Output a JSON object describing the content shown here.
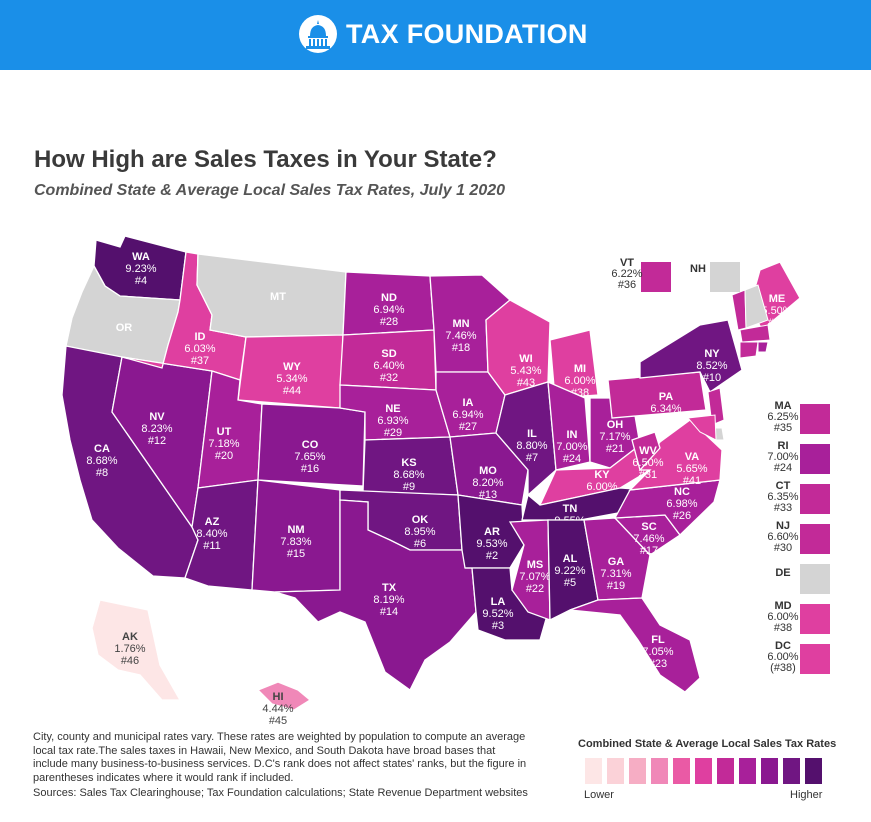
{
  "header": {
    "brand": "TAX FOUNDATION",
    "logo_icon": "capitol-dome-icon",
    "color": "#1a8fe8"
  },
  "title": "How High are Sales Taxes in Your State?",
  "subtitle": "Combined State & Average Local Sales Tax Rates, July 1 2020",
  "colors": {
    "no_tax": "#d4d4d4",
    "scale": [
      "#fde6e6",
      "#fbd2d8",
      "#f6adc4",
      "#f088b8",
      "#ea5aa5",
      "#df3fa0",
      "#c22a98",
      "#a8209a",
      "#8a1890",
      "#701682",
      "#54106d"
    ]
  },
  "states": [
    {
      "abbr": "WA",
      "rate": "9.23%",
      "rank": "#4"
    },
    {
      "abbr": "OR",
      "rate": "",
      "rank": ""
    },
    {
      "abbr": "CA",
      "rate": "8.68%",
      "rank": "#8"
    },
    {
      "abbr": "NV",
      "rate": "8.23%",
      "rank": "#12"
    },
    {
      "abbr": "ID",
      "rate": "6.03%",
      "rank": "#37"
    },
    {
      "abbr": "MT",
      "rate": "",
      "rank": ""
    },
    {
      "abbr": "WY",
      "rate": "5.34%",
      "rank": "#44"
    },
    {
      "abbr": "UT",
      "rate": "7.18%",
      "rank": "#20"
    },
    {
      "abbr": "AZ",
      "rate": "8.40%",
      "rank": "#11"
    },
    {
      "abbr": "CO",
      "rate": "7.65%",
      "rank": "#16"
    },
    {
      "abbr": "NM",
      "rate": "7.83%",
      "rank": "#15"
    },
    {
      "abbr": "ND",
      "rate": "6.94%",
      "rank": "#28"
    },
    {
      "abbr": "SD",
      "rate": "6.40%",
      "rank": "#32"
    },
    {
      "abbr": "NE",
      "rate": "6.93%",
      "rank": "#29"
    },
    {
      "abbr": "KS",
      "rate": "8.68%",
      "rank": "#9"
    },
    {
      "abbr": "OK",
      "rate": "8.95%",
      "rank": "#6"
    },
    {
      "abbr": "TX",
      "rate": "8.19%",
      "rank": "#14"
    },
    {
      "abbr": "MN",
      "rate": "7.46%",
      "rank": "#18"
    },
    {
      "abbr": "IA",
      "rate": "6.94%",
      "rank": "#27"
    },
    {
      "abbr": "MO",
      "rate": "8.20%",
      "rank": "#13"
    },
    {
      "abbr": "AR",
      "rate": "9.53%",
      "rank": "#2"
    },
    {
      "abbr": "LA",
      "rate": "9.52%",
      "rank": "#3"
    },
    {
      "abbr": "WI",
      "rate": "5.43%",
      "rank": "#43"
    },
    {
      "abbr": "IL",
      "rate": "8.80%",
      "rank": "#7"
    },
    {
      "abbr": "MI",
      "rate": "6.00%",
      "rank": "#38"
    },
    {
      "abbr": "IN",
      "rate": "7.00%",
      "rank": "#24"
    },
    {
      "abbr": "OH",
      "rate": "7.17%",
      "rank": "#21"
    },
    {
      "abbr": "KY",
      "rate": "6.00%",
      "rank": "#38"
    },
    {
      "abbr": "TN",
      "rate": "9.55%",
      "rank": "#1"
    },
    {
      "abbr": "MS",
      "rate": "7.07%",
      "rank": "#22"
    },
    {
      "abbr": "AL",
      "rate": "9.22%",
      "rank": "#5"
    },
    {
      "abbr": "GA",
      "rate": "7.31%",
      "rank": "#19"
    },
    {
      "abbr": "FL",
      "rate": "7.05%",
      "rank": "#23"
    },
    {
      "abbr": "SC",
      "rate": "7.46%",
      "rank": "#17"
    },
    {
      "abbr": "NC",
      "rate": "6.98%",
      "rank": "#26"
    },
    {
      "abbr": "VA",
      "rate": "5.65%",
      "rank": "#41"
    },
    {
      "abbr": "WV",
      "rate": "6.50%",
      "rank": "#31"
    },
    {
      "abbr": "PA",
      "rate": "6.34%",
      "rank": "#34"
    },
    {
      "abbr": "NY",
      "rate": "8.52%",
      "rank": "#10"
    },
    {
      "abbr": "ME",
      "rate": "5.50%",
      "rank": "#42"
    },
    {
      "abbr": "AK",
      "rate": "1.76%",
      "rank": "#46"
    },
    {
      "abbr": "HI",
      "rate": "4.44%",
      "rank": "#45"
    }
  ],
  "callouts": [
    {
      "abbr": "VT",
      "rate": "6.22%",
      "rank": "#36"
    },
    {
      "abbr": "NH",
      "rate": "",
      "rank": ""
    },
    {
      "abbr": "MA",
      "rate": "6.25%",
      "rank": "#35"
    },
    {
      "abbr": "RI",
      "rate": "7.00%",
      "rank": "#24"
    },
    {
      "abbr": "CT",
      "rate": "6.35%",
      "rank": "#33"
    },
    {
      "abbr": "NJ",
      "rate": "6.60%",
      "rank": "#30"
    },
    {
      "abbr": "DE",
      "rate": "",
      "rank": ""
    },
    {
      "abbr": "MD",
      "rate": "6.00%",
      "rank": "#38"
    },
    {
      "abbr": "DC",
      "rate": "6.00%",
      "rank": "(#38)"
    }
  ],
  "notes": {
    "text": "City, county and municipal rates vary. These rates are weighted by population to compute an average local tax rate.The sales taxes in Hawaii, New Mexico, and South Dakota have broad bases that include many business-to-business services. D.C's rank does not affect states' ranks, but the figure in parentheses indicates where it would rank if included.",
    "sources": "Sources: Sales Tax Clearinghouse; Tax Foundation calculations; State Revenue Department websites"
  },
  "legend": {
    "title": "Combined State & Average Local Sales Tax Rates",
    "low": "Lower",
    "high": "Higher"
  }
}
